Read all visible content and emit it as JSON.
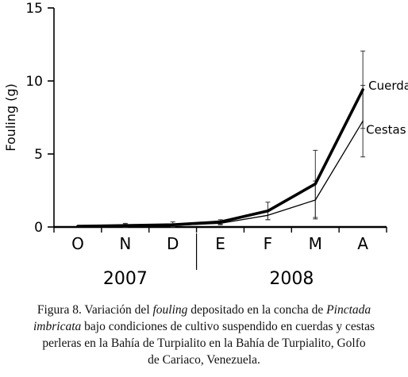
{
  "chart_data": {
    "type": "line",
    "ylabel": "Fouling (g)",
    "ylim": [
      0,
      15
    ],
    "yticks": [
      0,
      5,
      10,
      15
    ],
    "categories": [
      "O",
      "N",
      "D",
      "E",
      "F",
      "M",
      "A"
    ],
    "year_groups": [
      {
        "label": "2007",
        "categories": [
          "O",
          "N",
          "D"
        ]
      },
      {
        "label": "2008",
        "categories": [
          "E",
          "F",
          "M",
          "A"
        ]
      }
    ],
    "series": [
      {
        "name": "Cuerdas",
        "values": [
          0.05,
          0.1,
          0.15,
          0.35,
          1.1,
          2.95,
          9.4
        ],
        "error": [
          0.0,
          0.15,
          0.2,
          0.15,
          0.6,
          2.3,
          2.65
        ],
        "color": "#000000"
      },
      {
        "name": "Cestas",
        "values": [
          0.05,
          0.08,
          0.12,
          0.25,
          0.8,
          1.85,
          7.25
        ],
        "error": [
          0.0,
          0.1,
          0.1,
          0.1,
          0.3,
          1.3,
          2.45
        ],
        "color": "#000000"
      }
    ]
  },
  "caption": {
    "lines": [
      [
        {
          "t": "Figura 8. Variación del "
        },
        {
          "t": "fouling",
          "i": true
        },
        {
          "t": " depositado en la concha de "
        },
        {
          "t": "Pinctada",
          "i": true
        }
      ],
      [
        {
          "t": "imbricata",
          "i": true
        },
        {
          "t": " bajo condiciones de cultivo suspendido en cuerdas y cestas"
        }
      ],
      [
        {
          "t": "perleras en la Bahía de Turpialito en la Bahía  de Turpialito, Golfo"
        }
      ],
      [
        {
          "t": "de Cariaco, Venezuela."
        }
      ]
    ]
  }
}
